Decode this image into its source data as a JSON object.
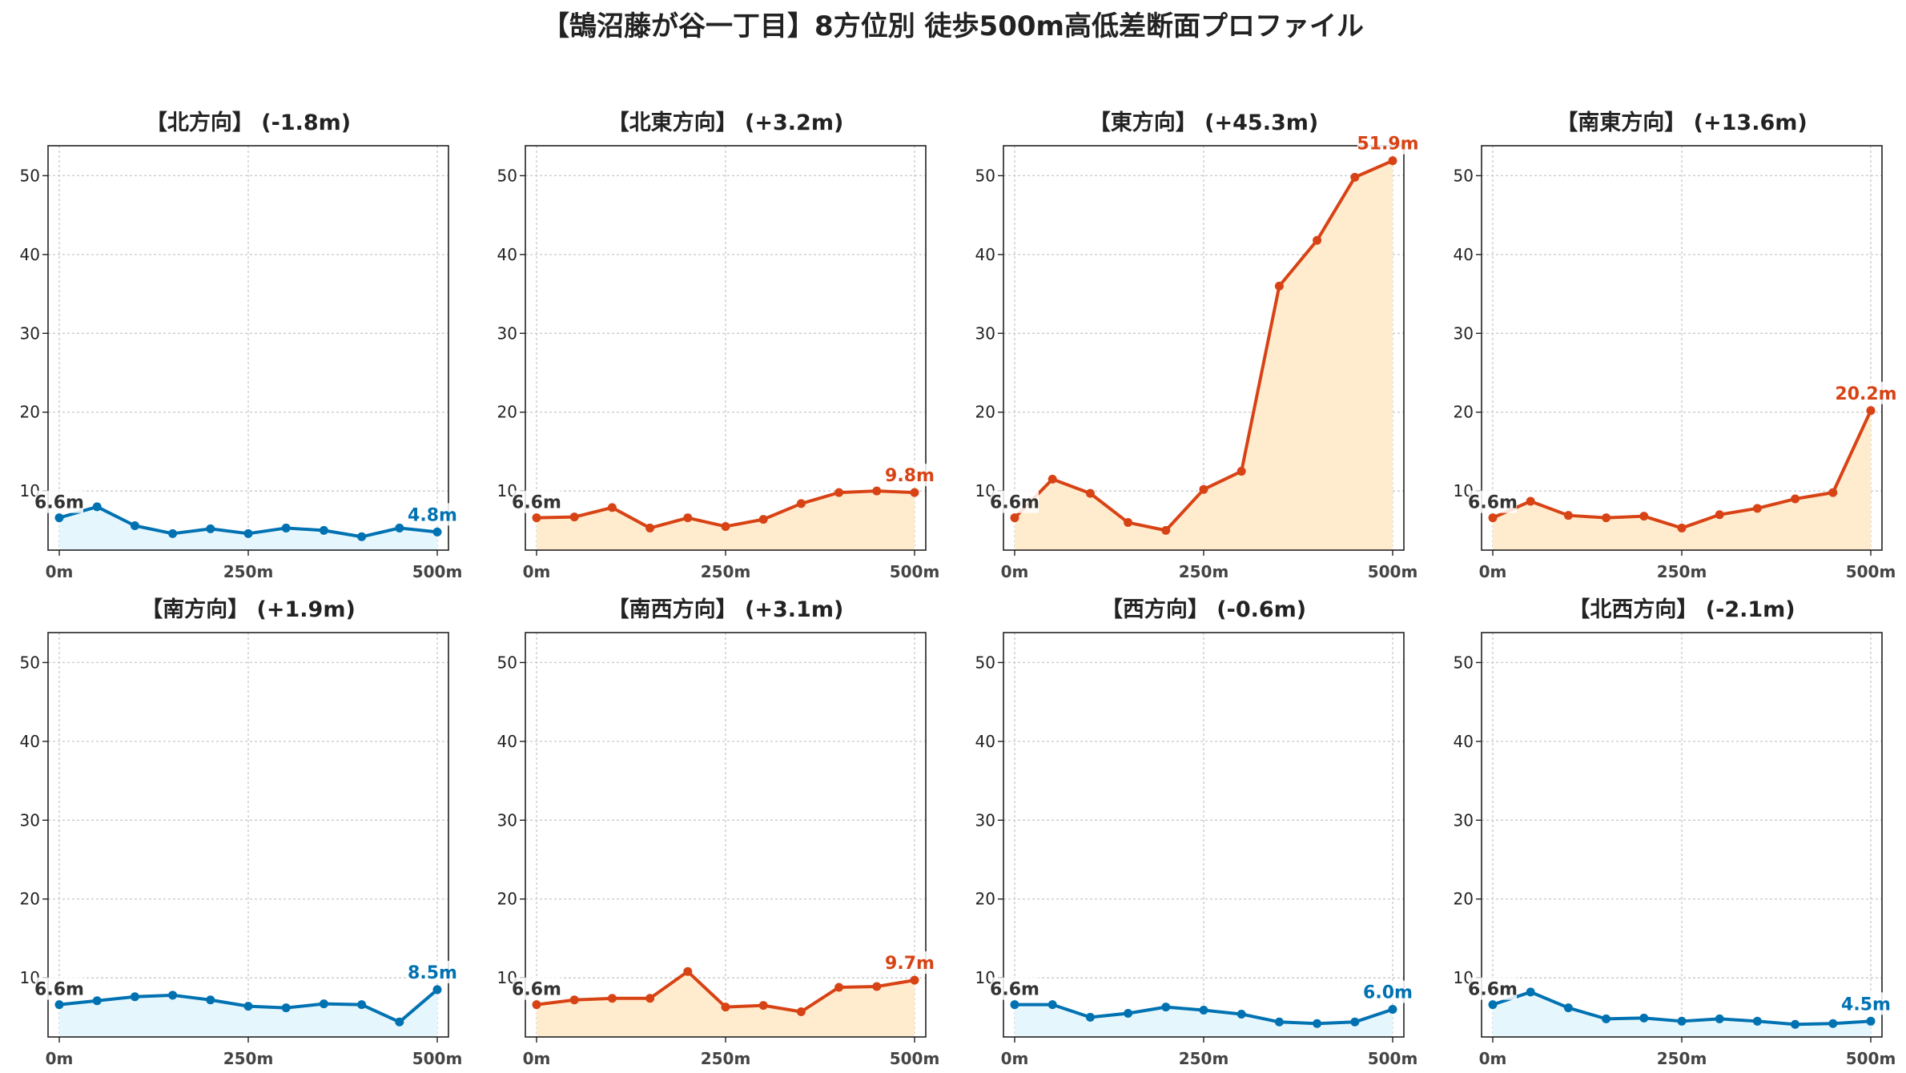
{
  "title": "【鵠沼藤が谷一丁目】8方位別 徒歩500m高低差断面プロファイル",
  "colors": {
    "up_line": "#d84315",
    "up_fill": "#ffeccf",
    "down_line": "#0072b2",
    "down_fill": "#e6f6fd",
    "start_label": "#333333"
  },
  "chart_data": [
    {
      "type": "area",
      "title": "【北方向】 (-1.8m)",
      "trend": "down",
      "x": [
        0,
        50,
        100,
        150,
        200,
        250,
        300,
        350,
        400,
        450,
        500
      ],
      "values": [
        6.6,
        8.0,
        5.6,
        4.6,
        5.2,
        4.6,
        5.3,
        5.0,
        4.2,
        5.3,
        4.8
      ],
      "start_label": "6.6m",
      "end_label": "4.8m",
      "x_ticks": [
        "0m",
        "250m",
        "500m"
      ],
      "y_ticks": [
        "10",
        "20",
        "30",
        "40",
        "50"
      ],
      "ylim": [
        2.5,
        53.8
      ],
      "grid": true
    },
    {
      "type": "area",
      "title": "【北東方向】 (+3.2m)",
      "trend": "up",
      "x": [
        0,
        50,
        100,
        150,
        200,
        250,
        300,
        350,
        400,
        450,
        500
      ],
      "values": [
        6.6,
        6.7,
        7.9,
        5.3,
        6.6,
        5.5,
        6.4,
        8.4,
        9.8,
        10.0,
        9.8
      ],
      "start_label": "6.6m",
      "end_label": "9.8m",
      "x_ticks": [
        "0m",
        "250m",
        "500m"
      ],
      "y_ticks": [
        "10",
        "20",
        "30",
        "40",
        "50"
      ],
      "ylim": [
        2.5,
        53.8
      ],
      "grid": true
    },
    {
      "type": "area",
      "title": "【東方向】 (+45.3m)",
      "trend": "up",
      "x": [
        0,
        50,
        100,
        150,
        200,
        250,
        300,
        350,
        400,
        450,
        500
      ],
      "values": [
        6.6,
        11.5,
        9.7,
        6.0,
        5.0,
        10.2,
        12.5,
        36.0,
        41.8,
        49.8,
        51.9
      ],
      "start_label": "6.6m",
      "end_label": "51.9m",
      "x_ticks": [
        "0m",
        "250m",
        "500m"
      ],
      "y_ticks": [
        "10",
        "20",
        "30",
        "40",
        "50"
      ],
      "ylim": [
        2.5,
        53.8
      ],
      "grid": true
    },
    {
      "type": "area",
      "title": "【南東方向】 (+13.6m)",
      "trend": "up",
      "x": [
        0,
        50,
        100,
        150,
        200,
        250,
        300,
        350,
        400,
        450,
        500
      ],
      "values": [
        6.6,
        8.7,
        6.9,
        6.6,
        6.8,
        5.3,
        7.0,
        7.8,
        9.0,
        9.8,
        20.2
      ],
      "start_label": "6.6m",
      "end_label": "20.2m",
      "x_ticks": [
        "0m",
        "250m",
        "500m"
      ],
      "y_ticks": [
        "10",
        "20",
        "30",
        "40",
        "50"
      ],
      "ylim": [
        2.5,
        53.8
      ],
      "grid": true
    },
    {
      "type": "area",
      "title": "【南方向】 (+1.9m)",
      "trend": "up_small",
      "x": [
        0,
        50,
        100,
        150,
        200,
        250,
        300,
        350,
        400,
        450,
        500
      ],
      "values": [
        6.6,
        7.1,
        7.6,
        7.8,
        7.2,
        6.4,
        6.2,
        6.7,
        6.6,
        4.4,
        8.5
      ],
      "start_label": "6.6m",
      "end_label": "8.5m",
      "x_ticks": [
        "0m",
        "250m",
        "500m"
      ],
      "y_ticks": [
        "10",
        "20",
        "30",
        "40",
        "50"
      ],
      "ylim": [
        2.5,
        53.8
      ],
      "grid": true
    },
    {
      "type": "area",
      "title": "【南西方向】 (+3.1m)",
      "trend": "up",
      "x": [
        0,
        50,
        100,
        150,
        200,
        250,
        300,
        350,
        400,
        450,
        500
      ],
      "values": [
        6.6,
        7.2,
        7.4,
        7.4,
        10.8,
        6.3,
        6.5,
        5.7,
        8.8,
        8.9,
        9.7
      ],
      "start_label": "6.6m",
      "end_label": "9.7m",
      "x_ticks": [
        "0m",
        "250m",
        "500m"
      ],
      "y_ticks": [
        "10",
        "20",
        "30",
        "40",
        "50"
      ],
      "ylim": [
        2.5,
        53.8
      ],
      "grid": true
    },
    {
      "type": "area",
      "title": "【西方向】 (-0.6m)",
      "trend": "down",
      "x": [
        0,
        50,
        100,
        150,
        200,
        250,
        300,
        350,
        400,
        450,
        500
      ],
      "values": [
        6.6,
        6.6,
        5.0,
        5.5,
        6.3,
        5.9,
        5.4,
        4.4,
        4.2,
        4.4,
        6.0
      ],
      "start_label": "6.6m",
      "end_label": "6.0m",
      "x_ticks": [
        "0m",
        "250m",
        "500m"
      ],
      "y_ticks": [
        "10",
        "20",
        "30",
        "40",
        "50"
      ],
      "ylim": [
        2.5,
        53.8
      ],
      "grid": true
    },
    {
      "type": "area",
      "title": "【北西方向】 (-2.1m)",
      "trend": "down",
      "x": [
        0,
        50,
        100,
        150,
        200,
        250,
        300,
        350,
        400,
        450,
        500
      ],
      "values": [
        6.6,
        8.2,
        6.2,
        4.8,
        4.9,
        4.5,
        4.8,
        4.5,
        4.1,
        4.2,
        4.5
      ],
      "start_label": "6.6m",
      "end_label": "4.5m",
      "x_ticks": [
        "0m",
        "250m",
        "500m"
      ],
      "y_ticks": [
        "10",
        "20",
        "30",
        "40",
        "50"
      ],
      "ylim": [
        2.5,
        53.8
      ],
      "grid": true
    }
  ]
}
